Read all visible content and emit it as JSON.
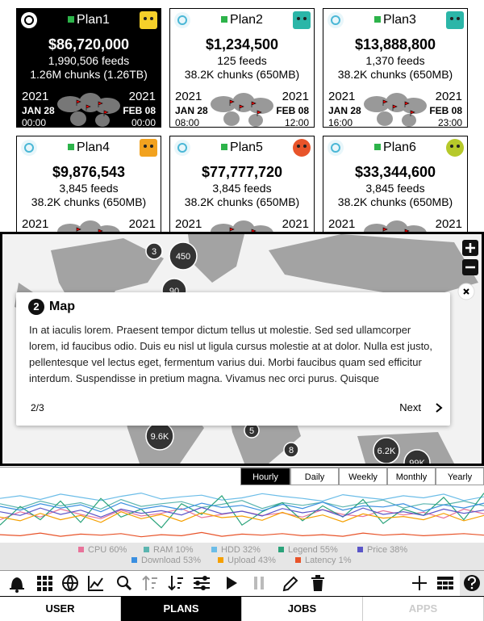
{
  "selected_plan": 0,
  "plans": [
    {
      "name": "Plan1",
      "amount": "$86,720,000",
      "feeds": "1,990,506 feeds",
      "chunks": "1.26M chunks (1.26TB)",
      "start": {
        "year": "2021",
        "date": "JAN 28",
        "time": "00:00"
      },
      "end": {
        "year": "2021",
        "date": "FEB 08",
        "time": "00:00"
      }
    },
    {
      "name": "Plan2",
      "amount": "$1,234,500",
      "feeds": "125 feeds",
      "chunks": "38.2K chunks (650MB)",
      "start": {
        "year": "2021",
        "date": "JAN 28",
        "time": "08:00"
      },
      "end": {
        "year": "2021",
        "date": "FEB 08",
        "time": "12:00"
      }
    },
    {
      "name": "Plan3",
      "amount": "$13,888,800",
      "feeds": "1,370 feeds",
      "chunks": "38.2K chunks (650MB)",
      "start": {
        "year": "2021",
        "date": "JAN 28",
        "time": "16:00"
      },
      "end": {
        "year": "2021",
        "date": "FEB 08",
        "time": "23:00"
      }
    },
    {
      "name": "Plan4",
      "amount": "$9,876,543",
      "feeds": "3,845 feeds",
      "chunks": "38.2K chunks (650MB)",
      "start": {
        "year": "2021"
      },
      "end": {
        "year": "2021"
      }
    },
    {
      "name": "Plan5",
      "amount": "$77,777,720",
      "feeds": "3,845 feeds",
      "chunks": "38.2K chunks (650MB)",
      "start": {
        "year": "2021"
      },
      "end": {
        "year": "2021"
      }
    },
    {
      "name": "Plan6",
      "amount": "$33,344,600",
      "feeds": "3,845 feeds",
      "chunks": "38.2K chunks (650MB)",
      "start": {
        "year": "2021"
      },
      "end": {
        "year": "2021"
      }
    }
  ],
  "map": {
    "clusters": [
      "3",
      "450",
      "90",
      "9.6K",
      "5",
      "8",
      "6.2K",
      "99K"
    ]
  },
  "tour": {
    "step": "2",
    "title": "Map",
    "body": "In at iaculis lorem. Praesent tempor dictum tellus ut molestie. Sed sed ullamcorper lorem, id faucibus odio. Duis eu nisl ut ligula cursus molestie at at dolor. Nulla est justo, pellentesque vel lectus eget, fermentum varius dui. Morbi faucibus quam sed efficitur interdum. Suspendisse in pretium magna. Vivamus nec orci purus. Quisque",
    "progress": "2/3",
    "next": "Next"
  },
  "chart_data": {
    "type": "line",
    "tabs": [
      "Hourly",
      "Daily",
      "Weekly",
      "Monthly",
      "Yearly"
    ],
    "active_tab": 0,
    "ylim": [
      0,
      100
    ],
    "series": [
      {
        "name": "CPU 60%",
        "color": "#e8739a",
        "values": [
          40,
          55,
          45,
          60,
          50,
          42,
          58,
          47,
          52,
          61,
          44,
          50,
          56,
          48,
          53,
          45,
          59,
          50,
          46,
          57,
          49,
          54,
          43,
          60,
          51
        ]
      },
      {
        "name": "RAM 10%",
        "color": "#5bb5b0",
        "values": [
          70,
          62,
          75,
          66,
          72,
          60,
          78,
          65,
          70,
          74,
          63,
          69,
          76,
          61,
          72,
          67,
          73,
          64,
          71,
          77,
          62,
          70,
          68,
          75,
          66
        ]
      },
      {
        "name": "HDD 32%",
        "color": "#6cbde8",
        "values": [
          80,
          85,
          78,
          88,
          82,
          76,
          84,
          90,
          79,
          83,
          86,
          77,
          81,
          89,
          84,
          80,
          75,
          87,
          82,
          78,
          85,
          81,
          88,
          76,
          83
        ]
      },
      {
        "name": "Legend 55%",
        "color": "#2aa37a",
        "values": [
          30,
          65,
          40,
          75,
          35,
          80,
          45,
          60,
          25,
          70,
          50,
          85,
          30,
          55,
          72,
          38,
          66,
          45,
          78,
          33,
          60,
          48,
          82,
          40,
          90
        ]
      },
      {
        "name": "Price 38%",
        "color": "#5a55c8",
        "values": [
          55,
          48,
          62,
          50,
          58,
          45,
          60,
          52,
          57,
          49,
          63,
          51,
          56,
          47,
          61,
          53,
          59,
          46,
          62,
          50,
          55,
          48,
          60,
          52,
          58
        ]
      },
      {
        "name": "Download 53%",
        "color": "#3a8fe0",
        "values": [
          65,
          58,
          70,
          62,
          68,
          55,
          72,
          60,
          66,
          59,
          71,
          63,
          67,
          57,
          69,
          61,
          73,
          58,
          66,
          64,
          70,
          56,
          68,
          62,
          71
        ]
      },
      {
        "name": "Upload 43%",
        "color": "#f5a000",
        "values": [
          45,
          38,
          52,
          40,
          48,
          35,
          55,
          42,
          50,
          37,
          53,
          44,
          47,
          39,
          54,
          41,
          49,
          36,
          51,
          43,
          46,
          40,
          52,
          38,
          48
        ]
      },
      {
        "name": "Latency 1%",
        "color": "#e8542a",
        "values": [
          12,
          10,
          15,
          9,
          13,
          11,
          14,
          8,
          12,
          10,
          16,
          9,
          13,
          11,
          14,
          10,
          12,
          9,
          15,
          11,
          13,
          10,
          12,
          14,
          11
        ]
      }
    ]
  },
  "nav": {
    "tabs": [
      "USER",
      "PLANS",
      "JOBS",
      "APPS"
    ],
    "active": 1,
    "disabled": [
      3
    ]
  }
}
